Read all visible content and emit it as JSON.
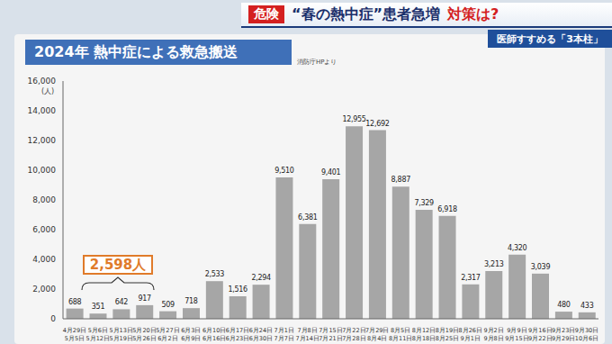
{
  "header": {
    "badge": "危険",
    "headline": "“春の熱中症”患者急増",
    "headline_tail": "対策は?",
    "subheadline": "医師すすめる「3本柱」"
  },
  "chart_data": {
    "type": "bar",
    "title": "2024年 熱中症による救急搬送",
    "source": "消防庁HPより",
    "y_label": "(人)",
    "annotation": "2,598人",
    "categories": [
      "4月29日\n5月5日",
      "5月6日\n5月12日",
      "5月13日\n5月19日",
      "5月20日\n5月26日",
      "5月27日\n6月2日",
      "6月3日\n6月9日",
      "6月10日\n6月16日",
      "6月17日\n6月23日",
      "6月24日\n6月30日",
      "7月1日\n7月7日",
      "7月8日\n7月14日",
      "7月15日\n7月21日",
      "7月22日\n7月28日",
      "7月29日\n8月4日",
      "8月5日\n8月11日",
      "8月12日\n8月18日",
      "8月19日\n8月25日",
      "8月26日\n9月1日",
      "9月2日\n9月8日",
      "9月9日\n9月15日",
      "9月16日\n9月22日",
      "9月23日\n9月29日",
      "9月30日\n10月6日"
    ],
    "values": [
      688,
      351,
      642,
      917,
      509,
      718,
      2533,
      1516,
      2294,
      9510,
      6381,
      9401,
      12955,
      12692,
      8887,
      7329,
      6918,
      2317,
      3213,
      4320,
      3039,
      480,
      433
    ],
    "value_labels": [
      "688",
      "351",
      "642",
      "917",
      "509",
      "718",
      "2,533",
      "1,516",
      "2,294",
      "9,510",
      "6,381",
      "9,401",
      "12,955",
      "12,692",
      "8,887",
      "7,329",
      "6,918",
      "2,317",
      "3,213",
      "4,320",
      "3,039",
      "480",
      "433"
    ],
    "color": "#a6a6a6",
    "ylim": [
      0,
      16000
    ],
    "yticks": [
      0,
      {
        "value": 2000,
        "label": "2,000"
      },
      {
        "value": 4000,
        "label": "4,000"
      },
      {
        "value": 6000,
        "label": "6,000"
      },
      {
        "value": 8000,
        "label": "8,000"
      },
      {
        "value": 10000,
        "label": "10,000"
      },
      {
        "value": 12000,
        "label": "12,000"
      },
      {
        "value": 14000,
        "label": "14,000"
      },
      {
        "value": 16000,
        "label": "16,000"
      }
    ],
    "grid": false,
    "data_labels": true
  }
}
